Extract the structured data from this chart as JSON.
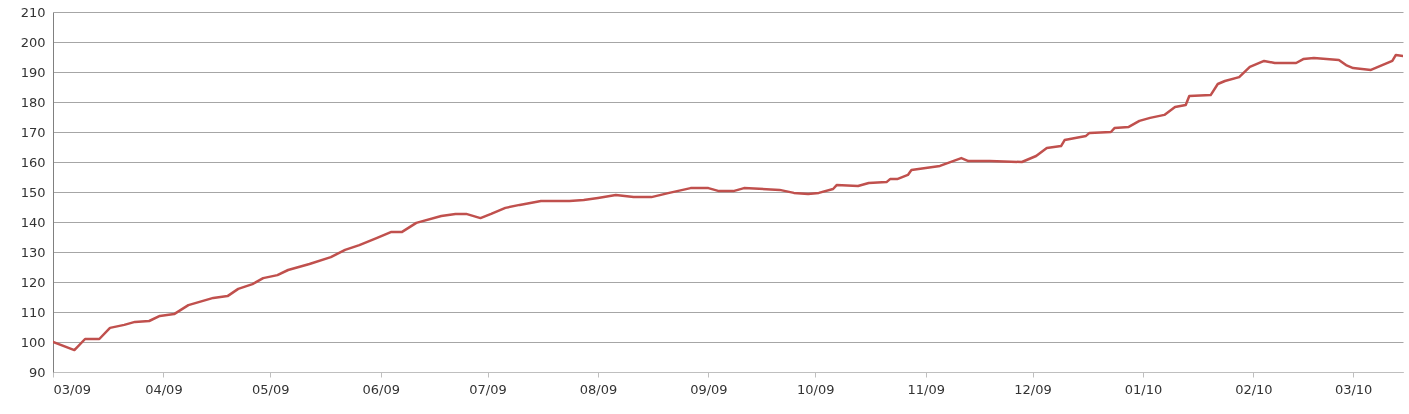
{
  "chart_data": {
    "type": "line",
    "x": [
      "2009-03-01",
      "2009-03-07",
      "2009-03-10",
      "2009-03-14",
      "2009-03-17",
      "2009-03-21",
      "2009-03-24",
      "2009-03-28",
      "2009-03-31",
      "2009-04-04",
      "2009-04-08",
      "2009-04-15",
      "2009-04-19",
      "2009-04-22",
      "2009-04-26",
      "2009-04-29",
      "2009-05-03",
      "2009-05-06",
      "2009-05-12",
      "2009-05-18",
      "2009-05-22",
      "2009-05-26",
      "2009-05-31",
      "2009-06-04",
      "2009-06-07",
      "2009-06-11",
      "2009-06-18",
      "2009-06-22",
      "2009-06-25",
      "2009-06-29",
      "2009-07-02",
      "2009-07-06",
      "2009-07-10",
      "2009-07-16",
      "2009-07-24",
      "2009-07-28",
      "2009-08-01",
      "2009-08-06",
      "2009-08-11",
      "2009-08-16",
      "2009-08-21",
      "2009-08-27",
      "2009-09-01",
      "2009-09-04",
      "2009-09-08",
      "2009-09-11",
      "2009-09-21",
      "2009-09-25",
      "2009-09-29",
      "2009-10-02",
      "2009-10-06",
      "2009-10-07",
      "2009-10-13",
      "2009-10-16",
      "2009-10-21",
      "2009-10-22",
      "2009-10-24",
      "2009-10-27",
      "2009-10-28",
      "2009-11-01",
      "2009-11-05",
      "2009-11-11",
      "2009-11-13",
      "2009-11-19",
      "2009-11-28",
      "2009-12-02",
      "2009-12-05",
      "2009-12-09",
      "2009-12-10",
      "2009-12-16",
      "2009-12-17",
      "2009-12-23",
      "2009-12-24",
      "2009-12-28",
      "2009-12-31",
      "2010-01-03",
      "2010-01-07",
      "2010-01-10",
      "2010-01-13",
      "2010-01-14",
      "2010-01-20",
      "2010-01-22",
      "2010-01-24",
      "2010-01-28",
      "2010-01-31",
      "2010-02-04",
      "2010-02-07",
      "2010-02-13",
      "2010-02-15",
      "2010-02-18",
      "2010-02-25",
      "2010-02-27",
      "2010-03-01",
      "2010-03-06",
      "2010-03-12",
      "2010-03-13",
      "2010-03-15"
    ],
    "series": [
      {
        "color": "#c0504d",
        "values": [
          100,
          97.3,
          101,
          101,
          104.7,
          105.7,
          106.7,
          107,
          108.7,
          109.3,
          112.3,
          114.7,
          115.3,
          117.7,
          119.3,
          121.3,
          122.3,
          124,
          126,
          128.3,
          130.7,
          132.3,
          134.7,
          136.7,
          136.7,
          139.7,
          142,
          142.7,
          142.7,
          141.3,
          142.7,
          144.7,
          145.7,
          147,
          147,
          147.3,
          148,
          149,
          148.3,
          148.3,
          149.7,
          151.3,
          151.3,
          150.3,
          150.3,
          151.3,
          150.7,
          149.7,
          149.3,
          149.7,
          151,
          152.3,
          152,
          153,
          153.3,
          154.3,
          154.3,
          155.7,
          157.3,
          158,
          158.7,
          161.3,
          160.3,
          160.3,
          160,
          162,
          164.7,
          165.3,
          167.3,
          168.7,
          169.7,
          170,
          171.3,
          171.7,
          173.7,
          174.7,
          175.7,
          178.3,
          179,
          182,
          182.3,
          186,
          187,
          188.3,
          191.7,
          193.7,
          193,
          193,
          194.3,
          194.7,
          194,
          192.3,
          191.3,
          190.7,
          193.7,
          195.7,
          195.3
        ]
      }
    ],
    "xlim": [
      "2009-03-01",
      "2010-03-15"
    ],
    "xticks": [
      {
        "value": "2009-03-01",
        "label": "03/09"
      },
      {
        "value": "2009-04-01",
        "label": "04/09"
      },
      {
        "value": "2009-05-01",
        "label": "05/09"
      },
      {
        "value": "2009-06-01",
        "label": "06/09"
      },
      {
        "value": "2009-07-01",
        "label": "07/09"
      },
      {
        "value": "2009-08-01",
        "label": "08/09"
      },
      {
        "value": "2009-09-01",
        "label": "09/09"
      },
      {
        "value": "2009-10-01",
        "label": "10/09"
      },
      {
        "value": "2009-11-01",
        "label": "11/09"
      },
      {
        "value": "2009-12-01",
        "label": "12/09"
      },
      {
        "value": "2010-01-01",
        "label": "01/10"
      },
      {
        "value": "2010-02-01",
        "label": "02/10"
      },
      {
        "value": "2010-03-01",
        "label": "03/10"
      }
    ],
    "ylim": [
      90,
      210
    ],
    "yticks": [
      90,
      100,
      110,
      120,
      130,
      140,
      150,
      160,
      170,
      180,
      190,
      200,
      210
    ],
    "grid": "y",
    "marker": "none",
    "line_style": "solid"
  }
}
